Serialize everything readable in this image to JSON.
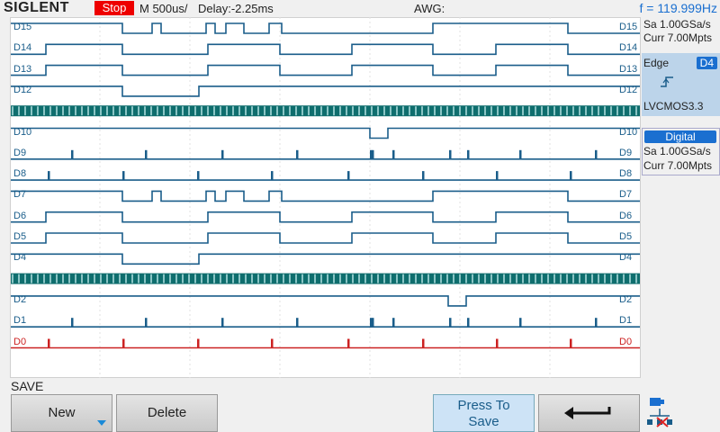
{
  "topbar": {
    "brand": "SIGLENT",
    "run_state": "Stop",
    "timebase": "M 500us/",
    "delay": "Delay:-2.25ms",
    "awg": "AWG:",
    "frequency": "f = 119.999Hz"
  },
  "acquisition": {
    "sample_rate": "Sa 1.00GSa/s",
    "memory": "Curr 7.00Mpts"
  },
  "trigger": {
    "type": "Edge",
    "source": "D4",
    "slope_icon": "rising-edge-icon",
    "level": "LVCMOS3.3"
  },
  "digital_panel": {
    "title": "Digital",
    "sample_rate": "Sa 1.00GSa/s",
    "memory": "Curr 7.00Mpts"
  },
  "channels": [
    {
      "label": "D15",
      "color": "#1a5d8a"
    },
    {
      "label": "D14",
      "color": "#1a5d8a"
    },
    {
      "label": "D13",
      "color": "#1a5d8a"
    },
    {
      "label": "D12",
      "color": "#1a5d8a"
    },
    {
      "label": "",
      "color": "#1a5d8a"
    },
    {
      "label": "D10",
      "color": "#1a5d8a"
    },
    {
      "label": "D9",
      "color": "#1a5d8a"
    },
    {
      "label": "D8",
      "color": "#1a5d8a"
    },
    {
      "label": "D7",
      "color": "#1a5d8a"
    },
    {
      "label": "D6",
      "color": "#1a5d8a"
    },
    {
      "label": "D5",
      "color": "#1a5d8a"
    },
    {
      "label": "D4",
      "color": "#1a5d8a"
    },
    {
      "label": "",
      "color": "#1a5d8a"
    },
    {
      "label": "D2",
      "color": "#1a5d8a"
    },
    {
      "label": "D1",
      "color": "#1a5d8a"
    },
    {
      "label": "D0",
      "color": "#cc2222"
    }
  ],
  "menu": {
    "title": "SAVE",
    "new_label": "New",
    "delete_label": "Delete",
    "press_to_save_line1": "Press To",
    "press_to_save_line2": "Save",
    "back_icon": "return-arrow-icon",
    "network_icon": "network-icon"
  },
  "colors": {
    "high_level": "#2e7d1e",
    "low_level": "#1a5d8a",
    "bus": "#0f6e6e",
    "d0": "#cc2222",
    "stop": "#ee0000",
    "accent": "#1a6fd0"
  }
}
